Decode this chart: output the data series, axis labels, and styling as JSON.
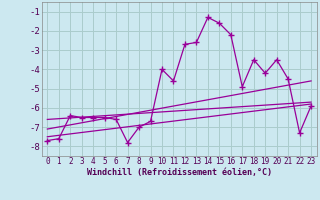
{
  "xlabel": "Windchill (Refroidissement éolien,°C)",
  "background_color": "#cce8f0",
  "grid_color": "#aacccc",
  "line_color": "#990099",
  "xlim": [
    -0.5,
    23.5
  ],
  "ylim": [
    -8.5,
    -0.5
  ],
  "yticks": [
    -8,
    -7,
    -6,
    -5,
    -4,
    -3,
    -2,
    -1
  ],
  "xticks": [
    0,
    1,
    2,
    3,
    4,
    5,
    6,
    7,
    8,
    9,
    10,
    11,
    12,
    13,
    14,
    15,
    16,
    17,
    18,
    19,
    20,
    21,
    22,
    23
  ],
  "series1_x": [
    0,
    1,
    2,
    3,
    4,
    5,
    6,
    7,
    8,
    9,
    10,
    11,
    12,
    13,
    14,
    15,
    16,
    17,
    18,
    19,
    20,
    21,
    22,
    23
  ],
  "series1_y": [
    -7.7,
    -7.6,
    -6.4,
    -6.5,
    -6.5,
    -6.5,
    -6.6,
    -7.8,
    -7.0,
    -6.7,
    -4.0,
    -4.6,
    -2.7,
    -2.6,
    -1.3,
    -1.6,
    -2.2,
    -4.9,
    -3.5,
    -4.2,
    -3.5,
    -4.5,
    -7.3,
    -5.9
  ],
  "series2_x": [
    0,
    23
  ],
  "series2_y": [
    -7.5,
    -5.8
  ],
  "series3_x": [
    0,
    23
  ],
  "series3_y": [
    -7.1,
    -4.6
  ],
  "series4_x": [
    0,
    23
  ],
  "series4_y": [
    -6.6,
    -5.7
  ]
}
